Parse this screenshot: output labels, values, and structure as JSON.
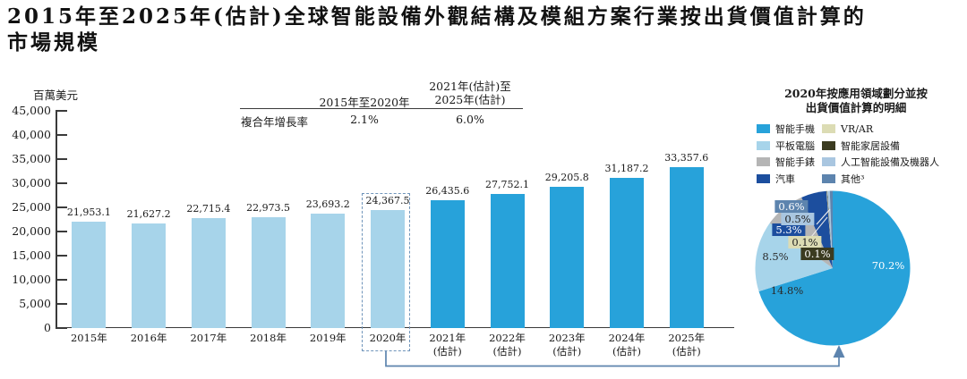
{
  "page": {
    "title_line1": "2015年至2025年(估計)全球智能設備外觀結構及模組方案行業按出貨價值計算的",
    "title_line2": "市場規模"
  },
  "bar_chart": {
    "unit_label": "百萬美元",
    "y_tick_labels": [
      "45,000",
      "40,000",
      "35,000",
      "30,000",
      "25,000",
      "20,000",
      "15,000",
      "10,000",
      "5,000",
      "0"
    ],
    "value_labels": [
      "21,953.1",
      "21,627.2",
      "22,715.4",
      "22,973.5",
      "23,693.2",
      "24,367.5",
      "26,435.6",
      "27,752.1",
      "29,205.8",
      "31,187.2",
      "33,357.6"
    ],
    "category_lines": [
      [
        "2015年"
      ],
      [
        "2016年"
      ],
      [
        "2017年"
      ],
      [
        "2018年"
      ],
      [
        "2019年"
      ],
      [
        "2020年"
      ],
      [
        "2021年",
        "(估計)"
      ],
      [
        "2022年",
        "(估計)"
      ],
      [
        "2023年",
        "(估計)"
      ],
      [
        "2024年",
        "(估計)"
      ],
      [
        "2025年",
        "(估計)"
      ]
    ],
    "historical_color": "#A7D4EA",
    "estimate_color": "#27A2DA",
    "historical_count": 6,
    "highlighted_category": "2020年"
  },
  "cagr_table": {
    "row_label": "複合年增長率",
    "col1_header": "2015年至2020年",
    "col2_header_line1": "2021年(估計)至",
    "col2_header_line2": "2025年(估計)",
    "col1_value": "2.1%",
    "col2_value": "6.0%"
  },
  "pie_chart": {
    "title_line1": "2020年按應用領域劃分並按",
    "title_line2": "出貨價值計算的明細",
    "legend": [
      {
        "label": "智能手機",
        "color": "#27A2DA"
      },
      {
        "label": "平板電腦",
        "color": "#A7D4EA"
      },
      {
        "label": "智能手錶",
        "color": "#B5B5B5"
      },
      {
        "label": "汽車",
        "color": "#1C4E9E"
      },
      {
        "label": "VR/AR",
        "color": "#DCDCB4"
      },
      {
        "label": "智能家居設備",
        "color": "#3B3B20"
      },
      {
        "label": "人工智能設備及機器人",
        "color": "#A9C6E0"
      },
      {
        "label": "其他³",
        "color": "#5D84AE"
      }
    ],
    "percent_labels": [
      "70.2%",
      "14.8%",
      "8.5%",
      "5.3%",
      "0.1%",
      "0.1%",
      "0.5%",
      "0.6%"
    ]
  },
  "chart_data": [
    {
      "type": "bar",
      "title": "2015年至2025年(估計)全球智能設備外觀結構及模組方案行業按出貨價值計算的市場規模",
      "ylabel": "百萬美元",
      "ylim": [
        0,
        45000
      ],
      "y_tick_step": 5000,
      "categories": [
        "2015年",
        "2016年",
        "2017年",
        "2018年",
        "2019年",
        "2020年",
        "2021年(估計)",
        "2022年(估計)",
        "2023年(估計)",
        "2024年(估計)",
        "2025年(估計)"
      ],
      "values": [
        21953.1,
        21627.2,
        22715.4,
        22973.5,
        23693.2,
        24367.5,
        26435.6,
        27752.1,
        29205.8,
        31187.2,
        33357.6
      ],
      "annotations": {
        "cagr_2015_2020": "2.1%",
        "cagr_2021_2025": "6.0%",
        "highlighted_category": "2020年"
      },
      "grid": false,
      "legend_position": "none"
    },
    {
      "type": "pie",
      "title": "2020年按應用領域劃分並按出貨價值計算的明細",
      "labels": [
        "智能手機",
        "平板電腦",
        "智能手錶",
        "汽車",
        "VR/AR",
        "智能家居設備",
        "人工智能設備及機器人",
        "其他³"
      ],
      "values": [
        70.2,
        14.8,
        8.5,
        5.3,
        0.1,
        0.1,
        0.5,
        0.6
      ],
      "colors": [
        "#27A2DA",
        "#A7D4EA",
        "#B5B5B5",
        "#1C4E9E",
        "#DCDCB4",
        "#3B3B20",
        "#A9C6E0",
        "#5D84AE"
      ],
      "start_angle_deg": 0,
      "direction": "clockwise",
      "legend_position": "top-left-two-columns"
    }
  ]
}
